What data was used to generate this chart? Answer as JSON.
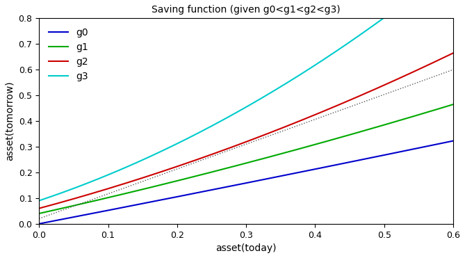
{
  "title": "Saving function (given g0<g1<g2<g3)",
  "xlabel": "asset(today)",
  "ylabel": "asset(tomorrow)",
  "xlim": [
    0,
    0.6
  ],
  "ylim": [
    0,
    0.8
  ],
  "xticks": [
    0,
    0.1,
    0.2,
    0.3,
    0.4,
    0.5,
    0.6
  ],
  "yticks": [
    0,
    0.1,
    0.2,
    0.3,
    0.4,
    0.5,
    0.6,
    0.7,
    0.8
  ],
  "lines": [
    {
      "label": "g0",
      "color": "#0000cc",
      "a": 0.0,
      "b": 0.52,
      "c": 0.03
    },
    {
      "label": "g1",
      "color": "#00aa00",
      "a": 0.04,
      "b": 0.6,
      "c": 0.18
    },
    {
      "label": "g2",
      "color": "#cc0000",
      "a": 0.06,
      "b": 0.72,
      "c": 0.48
    },
    {
      "label": "g3",
      "color": "#00cccc",
      "a": 0.09,
      "b": 0.9,
      "c": 1.05
    }
  ],
  "dotted_line": {
    "color": "#555555",
    "start_x": 0.0,
    "start_y": 0.02,
    "end_x": 0.6,
    "end_y": 0.6
  },
  "figsize": [
    6.69,
    3.71
  ],
  "dpi": 100,
  "background_color": "#ffffff",
  "title_fontsize": 10,
  "axis_label_fontsize": 10,
  "tick_fontsize": 9,
  "legend_fontsize": 10
}
